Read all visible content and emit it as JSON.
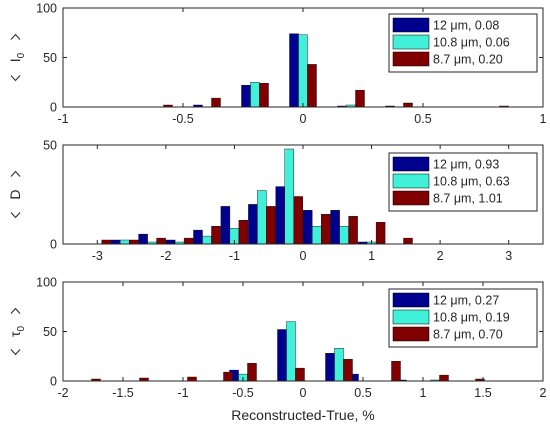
{
  "figure": {
    "xlabel": "Reconstructed-True, %"
  },
  "colors": {
    "series": [
      "#00008f",
      "#40f0d8",
      "#800000"
    ],
    "axes": "#262626",
    "background": "#ffffff"
  },
  "chart_data": [
    {
      "type": "bar",
      "ylabel_main": "I",
      "ylabel_sub": "0",
      "xlim": [
        -1,
        1
      ],
      "ylim": [
        0,
        100
      ],
      "xticks": [
        -1,
        -0.5,
        0,
        0.5,
        1
      ],
      "xtick_labels": [
        "-1",
        "-0.5",
        "0",
        "0.5",
        "1"
      ],
      "yticks": [
        0,
        50,
        100
      ],
      "ytick_labels": [
        "0",
        "50",
        "100"
      ],
      "legend_position": "top-right",
      "bin_centers": [
        -0.6,
        -0.4,
        -0.2,
        0.0,
        0.2,
        0.4,
        0.8
      ],
      "series": [
        {
          "name": "12  μm, 0.08",
          "values": [
            0,
            2,
            22,
            74,
            1,
            1,
            0
          ]
        },
        {
          "name": "10.8  μm, 0.06",
          "values": [
            0,
            0,
            25,
            73,
            2,
            0,
            0
          ]
        },
        {
          "name": "8.7  μm, 0.20",
          "values": [
            2,
            9,
            24,
            43,
            17,
            4,
            1
          ]
        }
      ]
    },
    {
      "type": "bar",
      "ylabel_main": "D",
      "ylabel_sub": "",
      "xlim": [
        -3.5,
        3.5
      ],
      "ylim": [
        0,
        50
      ],
      "xticks": [
        -3,
        -2,
        -1,
        0,
        1,
        2,
        3
      ],
      "xtick_labels": [
        "-3",
        "-2",
        "-1",
        "0",
        "1",
        "2",
        "3"
      ],
      "yticks": [
        0,
        50
      ],
      "ytick_labels": [
        "0",
        "50"
      ],
      "legend_position": "top-right",
      "bin_centers": [
        -3.0,
        -2.6,
        -2.2,
        -1.8,
        -1.4,
        -1.0,
        -0.6,
        -0.2,
        0.2,
        0.6,
        1.0,
        1.4,
        1.8
      ],
      "series": [
        {
          "name": "12  μm, 0.93",
          "values": [
            0,
            2,
            5,
            2,
            7,
            19,
            20,
            29,
            17,
            17,
            1,
            0,
            0
          ]
        },
        {
          "name": "10.8  μm, 0.63",
          "values": [
            0,
            2,
            1,
            1,
            4,
            8,
            27,
            48,
            9,
            9,
            1,
            0,
            0
          ]
        },
        {
          "name": "8.7  μm, 1.01",
          "values": [
            2,
            2,
            3,
            3,
            9,
            12,
            19,
            24,
            15,
            14,
            11,
            3,
            0
          ]
        }
      ]
    },
    {
      "type": "bar",
      "ylabel_main": "τ",
      "ylabel_sub": "0",
      "xlim": [
        -2,
        2
      ],
      "ylim": [
        0,
        100
      ],
      "xticks": [
        -2,
        -1.5,
        -1,
        -0.5,
        0,
        0.5,
        1,
        1.5,
        2
      ],
      "xtick_labels": [
        "-2",
        "-1.5",
        "-1",
        "-0.5",
        "0",
        "0.5",
        "1",
        "1.5",
        "2"
      ],
      "yticks": [
        0,
        50,
        100
      ],
      "ytick_labels": [
        "0",
        "50",
        "100"
      ],
      "legend_position": "top-right",
      "bin_centers": [
        -1.8,
        -1.4,
        -1.0,
        -0.7,
        -0.5,
        -0.3,
        -0.1,
        0.1,
        0.3,
        0.5,
        0.7,
        0.9,
        1.1,
        1.4
      ],
      "series": [
        {
          "name": "12  μm, 0.27",
          "values": [
            0,
            0,
            0,
            0,
            11,
            0,
            52,
            0,
            28,
            7,
            0,
            1,
            0,
            0
          ]
        },
        {
          "name": "10.8  μm, 0.19",
          "values": [
            0,
            0,
            0,
            0,
            7,
            0,
            60,
            0,
            33,
            0,
            0,
            0,
            1,
            0
          ]
        },
        {
          "name": "8.7  μm, 0.70",
          "values": [
            2,
            3,
            4,
            9,
            18,
            0,
            13,
            0,
            22,
            0,
            20,
            0,
            6,
            2
          ]
        }
      ]
    }
  ]
}
